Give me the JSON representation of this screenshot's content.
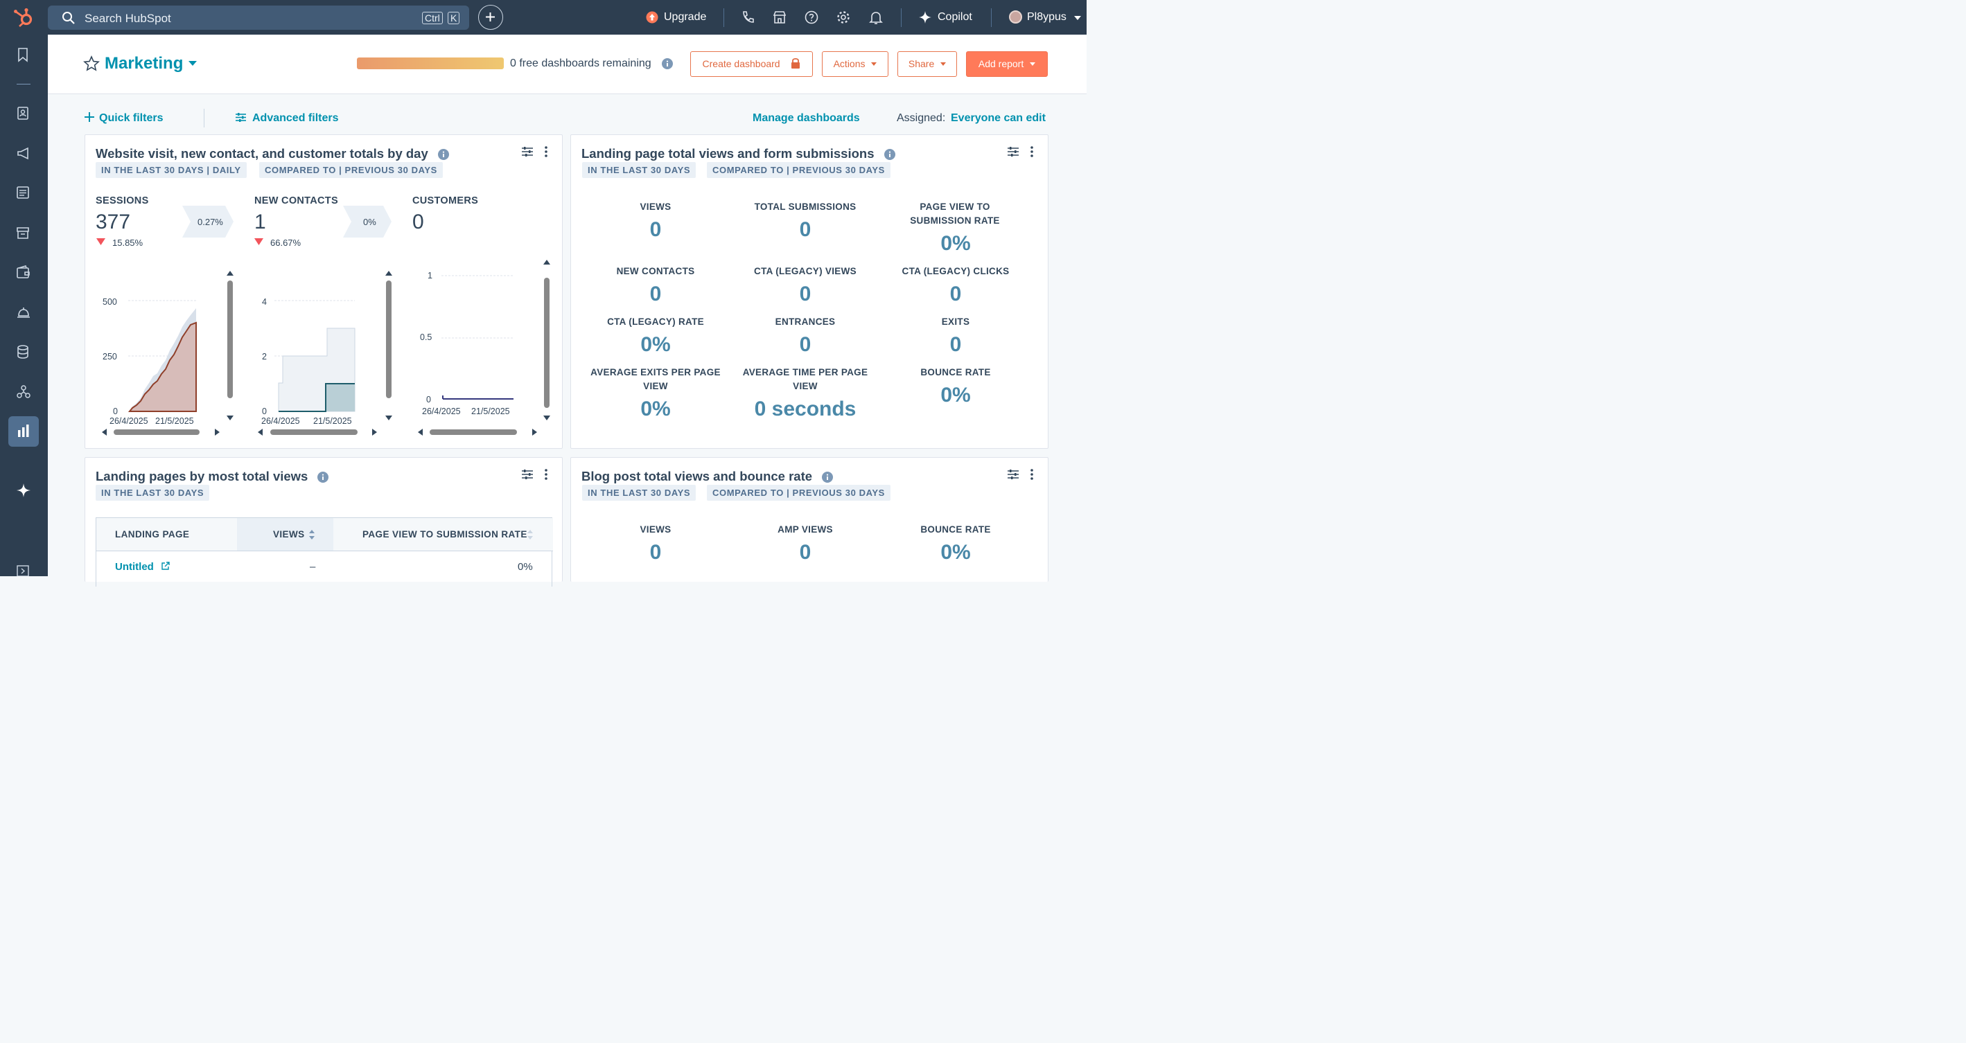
{
  "topbar": {
    "search_placeholder": "Search HubSpot",
    "shortcut_ctrl": "Ctrl",
    "shortcut_key": "K",
    "upgrade": "Upgrade",
    "copilot": "Copilot",
    "user": "Pl8ypus"
  },
  "header": {
    "title": "Marketing",
    "free_dashboards": "0 free dashboards remaining",
    "create_dashboard": "Create dashboard",
    "actions": "Actions",
    "share": "Share",
    "add_report": "Add report"
  },
  "filters": {
    "quick": "Quick filters",
    "advanced": "Advanced filters",
    "manage": "Manage dashboards",
    "assigned_label": "Assigned:",
    "assigned_value": "Everyone can edit"
  },
  "card1": {
    "title": "Website visit, new contact, and customer totals by day",
    "tag1": "IN THE LAST 30 DAYS | DAILY",
    "tag2": "COMPARED TO | PREVIOUS 30 DAYS",
    "sessions": {
      "label": "SESSIONS",
      "value": "377",
      "change": "15.85%",
      "rate": "0.27%"
    },
    "new_contacts": {
      "label": "NEW CONTACTS",
      "value": "1",
      "change": "66.67%",
      "rate": "0%"
    },
    "customers": {
      "label": "CUSTOMERS",
      "value": "0"
    },
    "chart1": {
      "y_ticks": [
        "500",
        "250",
        "0"
      ],
      "x_ticks": [
        "26/4/2025",
        "21/5/2025"
      ]
    },
    "chart2": {
      "y_ticks": [
        "4",
        "2",
        "0"
      ],
      "x_ticks": [
        "26/4/2025",
        "21/5/2025"
      ]
    },
    "chart3": {
      "y_ticks": [
        "1",
        "0.5",
        "0"
      ],
      "x_ticks": [
        "26/4/2025",
        "21/5/2025"
      ]
    }
  },
  "card2": {
    "title": "Landing page total views and form submissions",
    "tag1": "IN THE LAST 30 DAYS",
    "tag2": "COMPARED TO | PREVIOUS 30 DAYS",
    "metrics": [
      {
        "label": "VIEWS",
        "value": "0"
      },
      {
        "label": "TOTAL SUBMISSIONS",
        "value": "0"
      },
      {
        "label": "PAGE VIEW TO SUBMISSION RATE",
        "value": "0%"
      },
      {
        "label": "NEW CONTACTS",
        "value": "0"
      },
      {
        "label": "CTA (LEGACY) VIEWS",
        "value": "0"
      },
      {
        "label": "CTA (LEGACY) CLICKS",
        "value": "0"
      },
      {
        "label": "CTA (LEGACY) RATE",
        "value": "0%"
      },
      {
        "label": "ENTRANCES",
        "value": "0"
      },
      {
        "label": "EXITS",
        "value": "0"
      },
      {
        "label": "AVERAGE EXITS PER PAGE VIEW",
        "value": "0%"
      },
      {
        "label": "AVERAGE TIME PER PAGE VIEW",
        "value": "0 seconds"
      },
      {
        "label": "BOUNCE RATE",
        "value": "0%"
      }
    ]
  },
  "card3": {
    "title": "Landing pages by most total views",
    "tag1": "IN THE LAST 30 DAYS",
    "columns": [
      "LANDING PAGE",
      "VIEWS",
      "PAGE VIEW TO SUBMISSION RATE"
    ],
    "rows": [
      {
        "page": "Untitled",
        "views": "–",
        "rate": "0%"
      }
    ]
  },
  "card4": {
    "title": "Blog post total views and bounce rate",
    "tag1": "IN THE LAST 30 DAYS",
    "tag2": "COMPARED TO | PREVIOUS 30 DAYS",
    "metrics": [
      {
        "label": "VIEWS",
        "value": "0"
      },
      {
        "label": "AMP VIEWS",
        "value": "0"
      },
      {
        "label": "BOUNCE RATE",
        "value": "0%"
      }
    ]
  }
}
